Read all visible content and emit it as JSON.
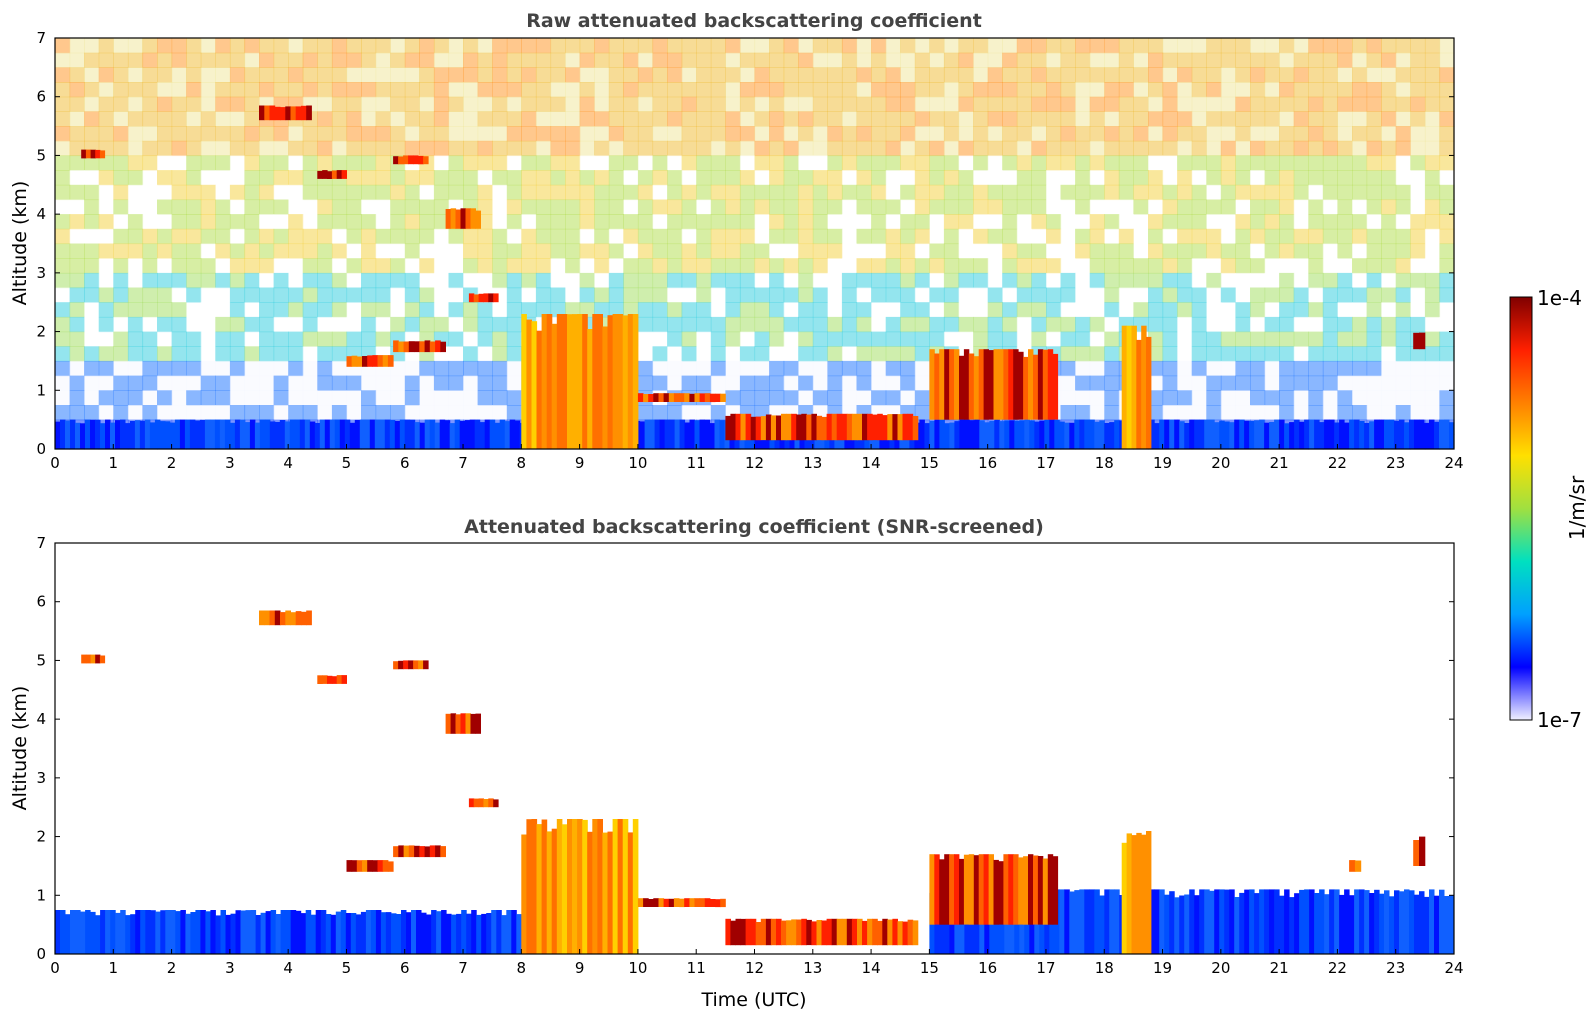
{
  "chart_data": [
    {
      "type": "heatmap",
      "title": "Raw attenuated backscattering coefficient",
      "xlabel": "",
      "ylabel": "Altitude (km)",
      "xlim": [
        0,
        24
      ],
      "ylim": [
        0,
        7
      ],
      "x_ticks": [
        "0",
        "1",
        "2",
        "3",
        "4",
        "5",
        "6",
        "7",
        "8",
        "9",
        "10",
        "11",
        "12",
        "13",
        "14",
        "15",
        "16",
        "17",
        "18",
        "19",
        "20",
        "21",
        "22",
        "23",
        "24"
      ],
      "y_ticks": [
        "0",
        "1",
        "2",
        "3",
        "4",
        "5",
        "6",
        "7"
      ],
      "scale": "log",
      "background_noise": true,
      "features": [
        {
          "kind": "boundary_layer",
          "from": 0,
          "to": 24,
          "base": 0,
          "top": 0.5
        },
        {
          "kind": "cloud_layer",
          "from": 0.45,
          "to": 0.85,
          "base": 4.95,
          "top": 5.1
        },
        {
          "kind": "cloud_layer",
          "from": 3.5,
          "to": 4.4,
          "base": 5.6,
          "top": 5.85
        },
        {
          "kind": "cloud_layer",
          "from": 5.0,
          "to": 5.8,
          "base": 1.4,
          "top": 1.6
        },
        {
          "kind": "cloud_layer",
          "from": 5.8,
          "to": 6.7,
          "base": 1.65,
          "top": 1.85
        },
        {
          "kind": "cloud_layer",
          "from": 5.8,
          "to": 6.4,
          "base": 4.85,
          "top": 5.0
        },
        {
          "kind": "cloud_layer",
          "from": 4.5,
          "to": 5.0,
          "base": 4.6,
          "top": 4.75
        },
        {
          "kind": "cloud_layer",
          "from": 6.7,
          "to": 7.3,
          "base": 3.75,
          "top": 4.1
        },
        {
          "kind": "cloud_layer",
          "from": 7.1,
          "to": 7.6,
          "base": 2.5,
          "top": 2.65
        },
        {
          "kind": "precip_column",
          "from": 8.0,
          "to": 10.0,
          "base": 0,
          "top": 2.3
        },
        {
          "kind": "cloud_layer",
          "from": 10.0,
          "to": 11.5,
          "base": 0.8,
          "top": 0.95
        },
        {
          "kind": "cloud_layer",
          "from": 11.5,
          "to": 14.8,
          "base": 0.15,
          "top": 0.6
        },
        {
          "kind": "cloud_layer",
          "from": 15.0,
          "to": 17.2,
          "base": 0.5,
          "top": 1.7
        },
        {
          "kind": "precip_column",
          "from": 18.3,
          "to": 18.8,
          "base": 0,
          "top": 2.1
        },
        {
          "kind": "cloud_layer",
          "from": 23.3,
          "to": 23.5,
          "base": 1.7,
          "top": 2.0
        }
      ]
    },
    {
      "type": "heatmap",
      "title": "Attenuated backscattering coefficient (SNR-screened)",
      "xlabel": "Time (UTC)",
      "ylabel": "Altitude (km)",
      "xlim": [
        0,
        24
      ],
      "ylim": [
        0,
        7
      ],
      "x_ticks": [
        "0",
        "1",
        "2",
        "3",
        "4",
        "5",
        "6",
        "7",
        "8",
        "9",
        "10",
        "11",
        "12",
        "13",
        "14",
        "15",
        "16",
        "17",
        "18",
        "19",
        "20",
        "21",
        "22",
        "23",
        "24"
      ],
      "y_ticks": [
        "0",
        "1",
        "2",
        "3",
        "4",
        "5",
        "6",
        "7"
      ],
      "scale": "log",
      "background_noise": false,
      "features": [
        {
          "kind": "boundary_layer",
          "from": 0,
          "to": 8,
          "base": 0,
          "top": 0.75
        },
        {
          "kind": "boundary_layer",
          "from": 15,
          "to": 24,
          "base": 0,
          "top": 1.1
        },
        {
          "kind": "cloud_layer",
          "from": 0.45,
          "to": 0.85,
          "base": 4.95,
          "top": 5.1
        },
        {
          "kind": "cloud_layer",
          "from": 3.5,
          "to": 4.4,
          "base": 5.6,
          "top": 5.85
        },
        {
          "kind": "cloud_layer",
          "from": 5.0,
          "to": 5.8,
          "base": 1.4,
          "top": 1.6
        },
        {
          "kind": "cloud_layer",
          "from": 5.8,
          "to": 6.7,
          "base": 1.65,
          "top": 1.85
        },
        {
          "kind": "cloud_layer",
          "from": 5.8,
          "to": 6.4,
          "base": 4.85,
          "top": 5.0
        },
        {
          "kind": "cloud_layer",
          "from": 4.5,
          "to": 5.0,
          "base": 4.6,
          "top": 4.75
        },
        {
          "kind": "cloud_layer",
          "from": 6.7,
          "to": 7.3,
          "base": 3.75,
          "top": 4.1
        },
        {
          "kind": "cloud_layer",
          "from": 7.1,
          "to": 7.6,
          "base": 2.5,
          "top": 2.65
        },
        {
          "kind": "precip_column",
          "from": 8.0,
          "to": 10.0,
          "base": 0,
          "top": 2.3
        },
        {
          "kind": "cloud_layer",
          "from": 10.0,
          "to": 11.5,
          "base": 0.8,
          "top": 0.95
        },
        {
          "kind": "cloud_layer",
          "from": 11.5,
          "to": 14.8,
          "base": 0.15,
          "top": 0.6
        },
        {
          "kind": "cloud_layer",
          "from": 15.0,
          "to": 17.2,
          "base": 0.5,
          "top": 1.7
        },
        {
          "kind": "precip_column",
          "from": 18.3,
          "to": 18.8,
          "base": 0,
          "top": 2.1
        },
        {
          "kind": "cloud_layer",
          "from": 22.2,
          "to": 22.4,
          "base": 1.4,
          "top": 1.6
        },
        {
          "kind": "cloud_layer",
          "from": 23.3,
          "to": 23.5,
          "base": 1.5,
          "top": 2.0
        }
      ]
    }
  ],
  "colorbar": {
    "max_label": "1e-4",
    "min_label": "1e-7",
    "unit_label": "1/m/sr",
    "colormap": [
      "#f0f0ff",
      "#0000ff",
      "#00a0ff",
      "#00e0c0",
      "#a0e040",
      "#ffe000",
      "#ff8000",
      "#ff2000",
      "#800000"
    ]
  }
}
